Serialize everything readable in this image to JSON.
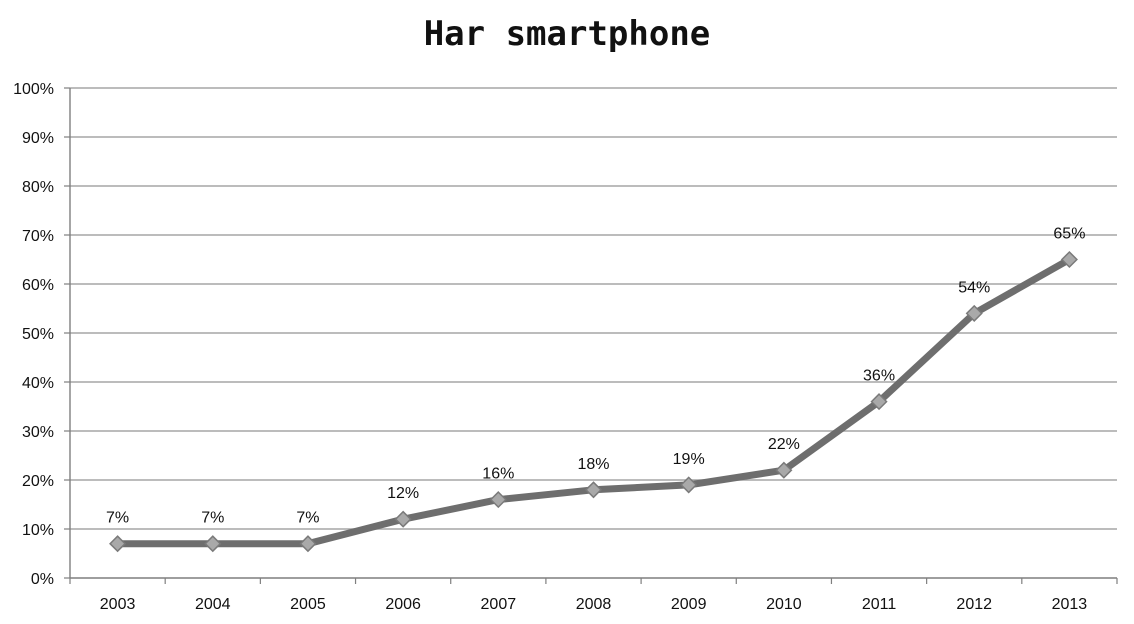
{
  "chart_data": {
    "type": "line",
    "title": "Har smartphone",
    "categories": [
      "2003",
      "2004",
      "2005",
      "2006",
      "2007",
      "2008",
      "2009",
      "2010",
      "2011",
      "2012",
      "2013"
    ],
    "series": [
      {
        "values": [
          7,
          7,
          7,
          12,
          16,
          18,
          19,
          22,
          36,
          54,
          65
        ],
        "data_labels": [
          "7%",
          "7%",
          "7%",
          "12%",
          "16%",
          "18%",
          "19%",
          "22%",
          "36%",
          "54%",
          "65%"
        ]
      }
    ],
    "y_ticks": [
      "0%",
      "10%",
      "20%",
      "30%",
      "40%",
      "50%",
      "60%",
      "70%",
      "80%",
      "90%",
      "100%"
    ],
    "ylim": [
      0,
      100
    ],
    "grid": true,
    "legend": "none",
    "colors": {
      "line": "#6e6e6e",
      "marker": "#a9a9a9",
      "grid": "#a6a6a6",
      "axis": "#7f7f7f"
    }
  }
}
